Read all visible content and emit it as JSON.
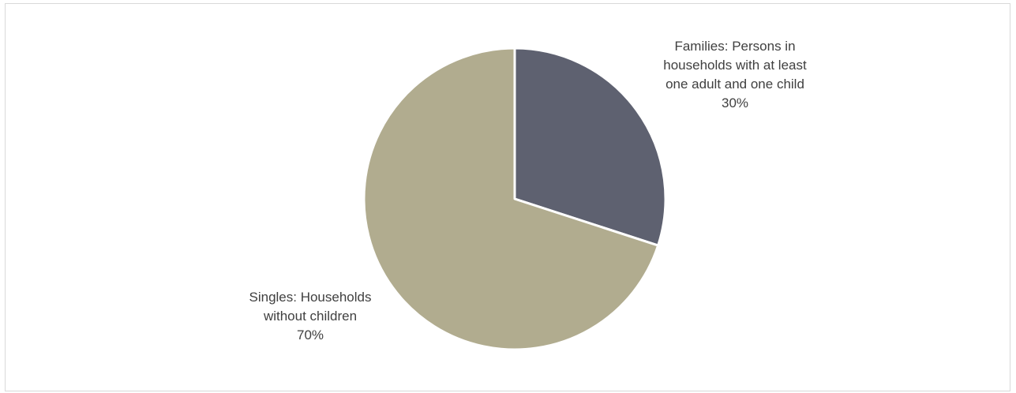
{
  "chart_data": {
    "type": "pie",
    "title": "",
    "slices": [
      {
        "label_lines": [
          "Families: Persons in",
          "households with at least",
          "one adult and one child"
        ],
        "value_label": "30%",
        "value": 30,
        "color": "#5e6170"
      },
      {
        "label_lines": [
          "Singles: Households",
          "without children"
        ],
        "value_label": "70%",
        "value": 70,
        "color": "#b1ac8f"
      }
    ],
    "start_angle": "12 o'clock",
    "direction": "clockwise",
    "legend": "none"
  }
}
